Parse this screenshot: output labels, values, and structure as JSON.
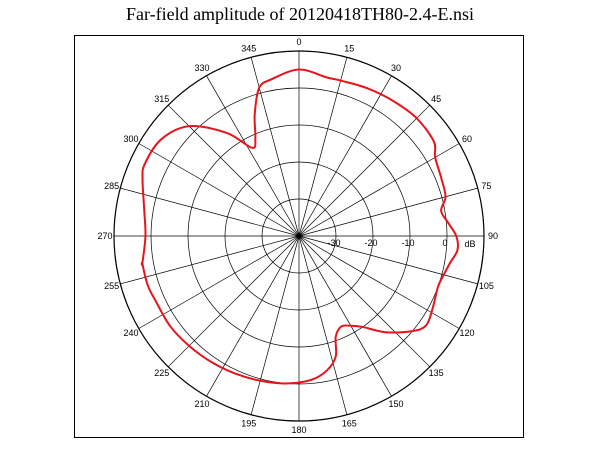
{
  "chart_data": {
    "type": "polar-line",
    "title": "Far-field amplitude of 20120418TH80-2.4-E.nsi",
    "angle_labels": [
      "0",
      "15",
      "30",
      "45",
      "60",
      "75",
      "90",
      "105",
      "120",
      "135",
      "150",
      "165",
      "180",
      "195",
      "210",
      "225",
      "240",
      "255",
      "270",
      "285",
      "300",
      "315",
      "330",
      "345"
    ],
    "radial_ticks": [
      -30,
      -20,
      -10,
      0
    ],
    "radial_tick_labels": [
      "-30",
      "-20",
      "-10",
      "0"
    ],
    "radial_unit": "dB",
    "r_range": [
      -40,
      10
    ],
    "series": [
      {
        "color": "#e8141b",
        "points": [
          [
            -100,
            3
          ],
          [
            -90,
            1.5
          ],
          [
            -80,
            2.5
          ],
          [
            -70,
            5
          ],
          [
            -65,
            6
          ],
          [
            -55,
            5.5
          ],
          [
            -45,
            2
          ],
          [
            -35,
            -6
          ],
          [
            -28,
            -13
          ],
          [
            -24,
            -11
          ],
          [
            -20,
            -5
          ],
          [
            -15,
            1.5
          ],
          [
            -10,
            3
          ],
          [
            0,
            5
          ],
          [
            10,
            3.5
          ],
          [
            15,
            3.5
          ],
          [
            25,
            4
          ],
          [
            35,
            4.5
          ],
          [
            45,
            5
          ],
          [
            55,
            4.5
          ],
          [
            60,
            2.5
          ],
          [
            68,
            1.5
          ],
          [
            75,
            1
          ],
          [
            80,
            -1
          ],
          [
            85,
            0.5
          ],
          [
            90,
            2.5
          ],
          [
            95,
            3
          ],
          [
            100,
            1.5
          ],
          [
            105,
            0.5
          ],
          [
            110,
            0
          ],
          [
            118,
            1
          ],
          [
            125,
            2
          ],
          [
            130,
            0
          ],
          [
            138,
            -5
          ],
          [
            145,
            -10
          ],
          [
            150,
            -12
          ],
          [
            155,
            -13
          ],
          [
            160,
            -11
          ],
          [
            163,
            -6
          ],
          [
            168,
            -3
          ],
          [
            175,
            -1
          ],
          [
            185,
            0
          ],
          [
            195,
            0.5
          ],
          [
            205,
            1
          ],
          [
            215,
            1.5
          ],
          [
            225,
            2
          ],
          [
            235,
            2.5
          ],
          [
            245,
            2.5
          ],
          [
            252,
            3
          ],
          [
            260,
            3
          ]
        ]
      }
    ]
  }
}
